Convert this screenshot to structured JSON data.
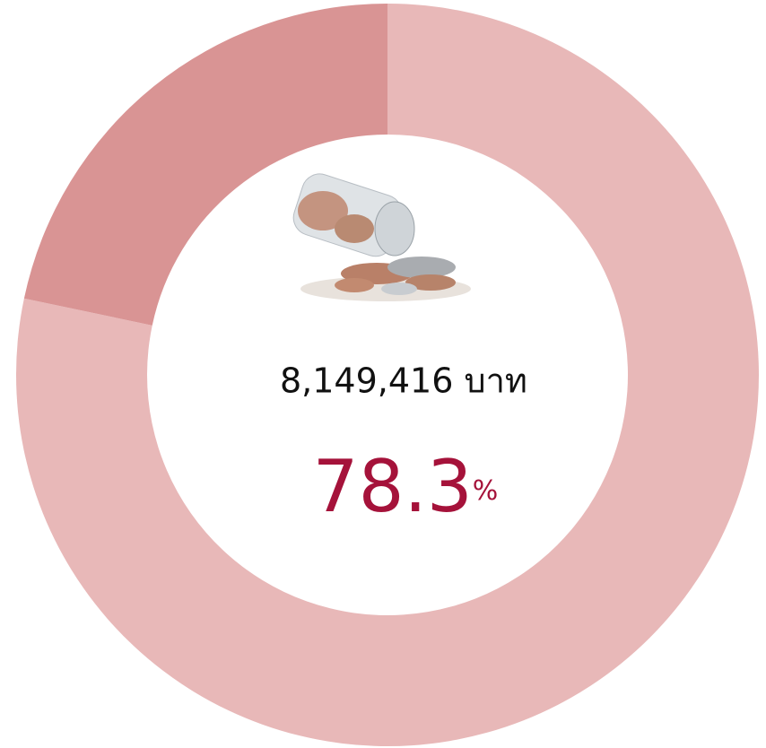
{
  "chart_data": {
    "type": "donut",
    "values": [
      78.3,
      21.7
    ],
    "colors": [
      "#e8b8b8",
      "#d99494"
    ],
    "center_text": "8,149,416 บาท",
    "highlight": {
      "number": "78.3",
      "unit": "%"
    },
    "highlight_color": "#a5123a"
  }
}
